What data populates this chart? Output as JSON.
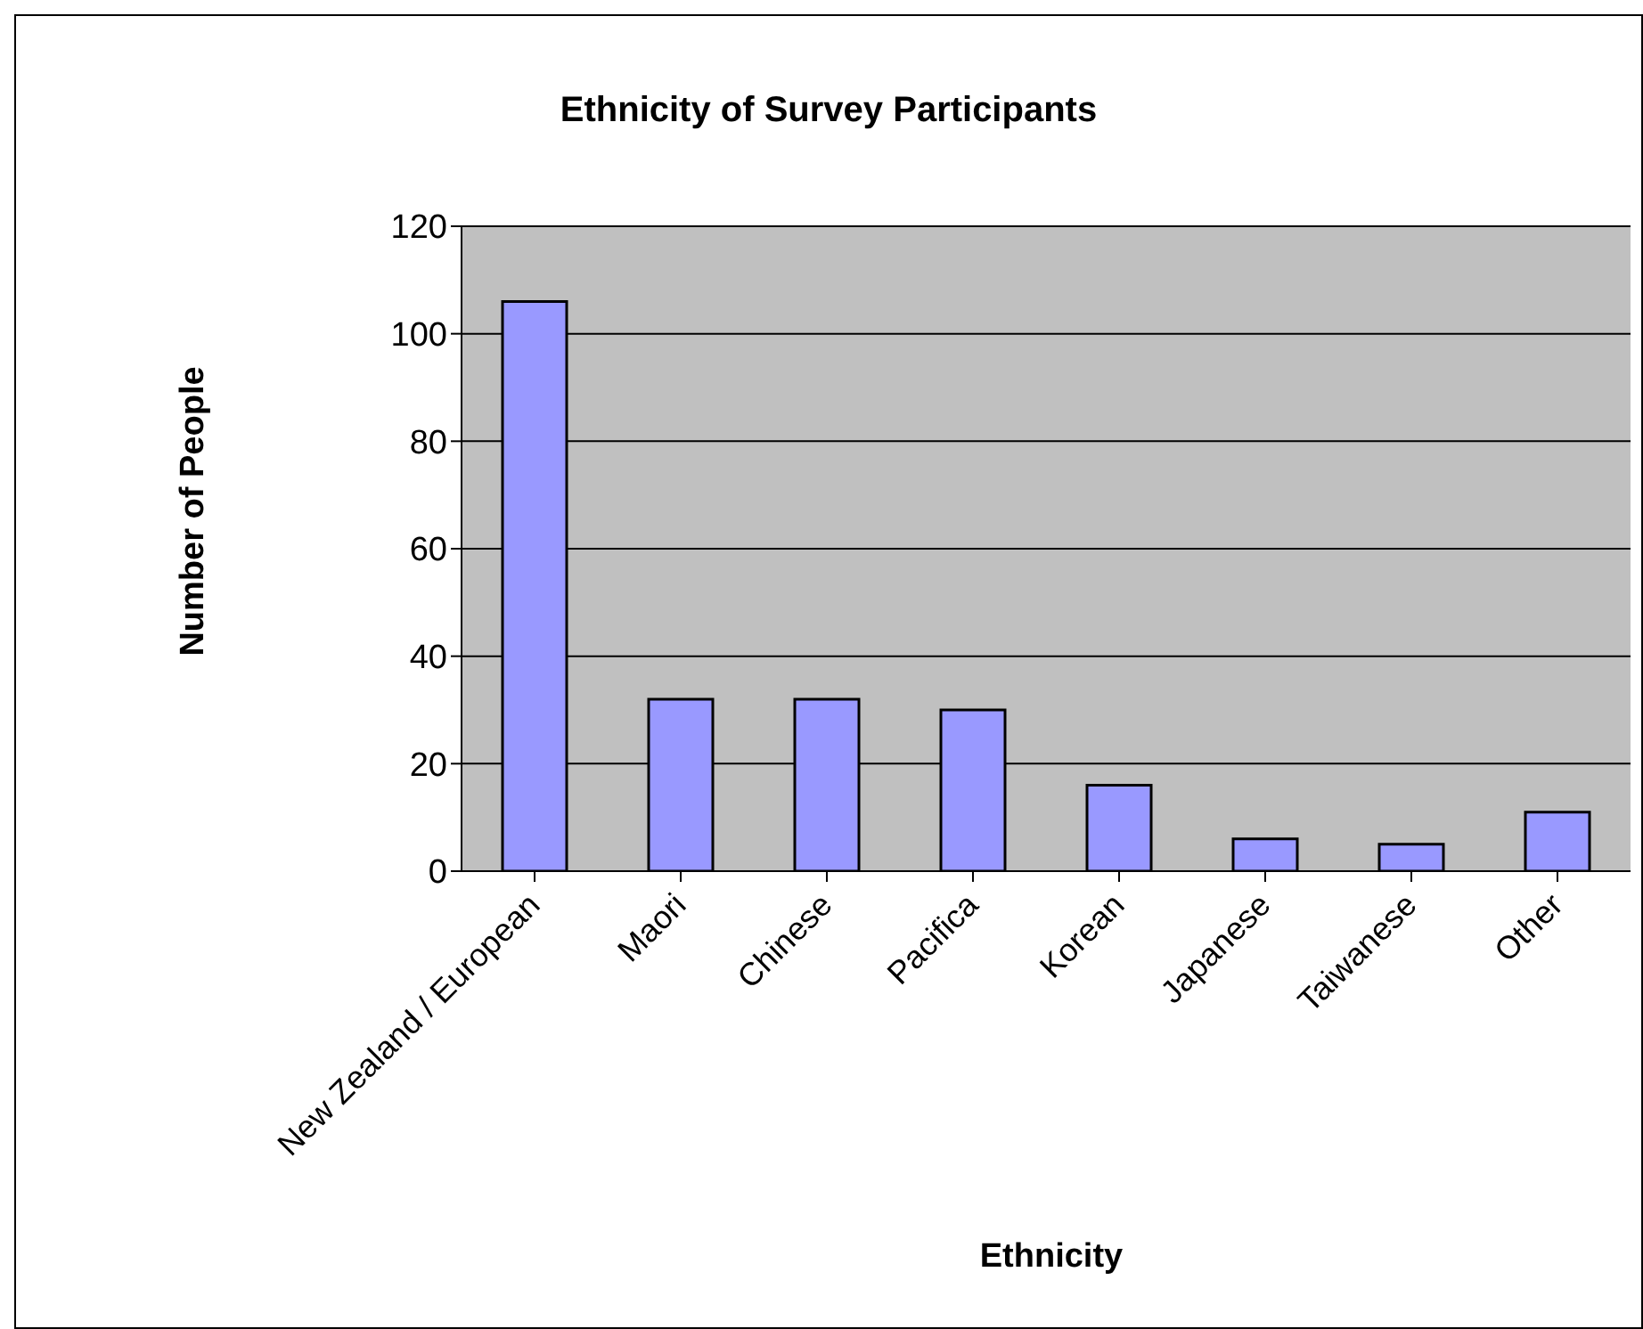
{
  "chart_data": {
    "type": "bar",
    "title": "Ethnicity of Survey Participants",
    "xlabel": "Ethnicity",
    "ylabel": "Number of People",
    "categories": [
      "New Zealand / European",
      "Maori",
      "Chinese",
      "Pacifica",
      "Korean",
      "Japanese",
      "Taiwanese",
      "Other"
    ],
    "values": [
      106,
      32,
      32,
      30,
      16,
      6,
      5,
      11
    ],
    "color": "#9999ff",
    "ylim": [
      0,
      120
    ],
    "yticks": [
      0,
      20,
      40,
      60,
      80,
      100,
      120
    ],
    "grid": "y"
  }
}
